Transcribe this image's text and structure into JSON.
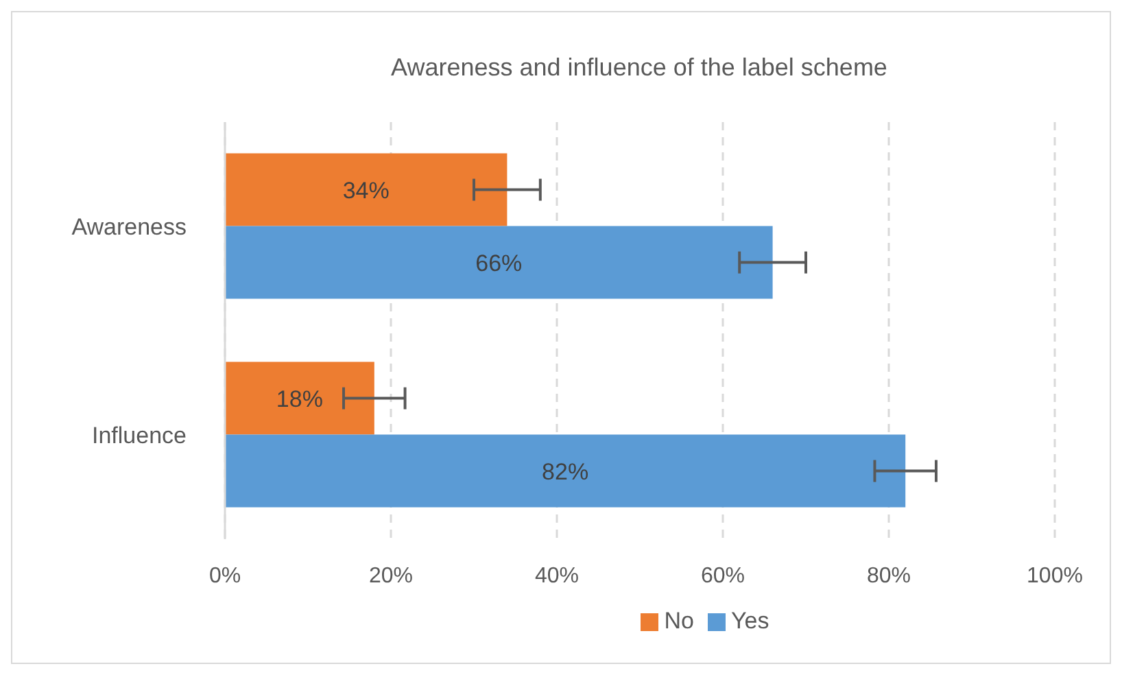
{
  "chart_data": {
    "type": "bar",
    "orientation": "horizontal",
    "title": "Awareness and influence of the label scheme",
    "categories": [
      "Awareness",
      "Influence"
    ],
    "series": [
      {
        "name": "No",
        "color": "#ed7d31",
        "values": [
          34,
          18
        ],
        "errors": [
          4,
          3.7
        ],
        "value_labels": [
          "34%",
          "18%"
        ]
      },
      {
        "name": "Yes",
        "color": "#5b9bd5",
        "values": [
          66,
          82
        ],
        "errors": [
          4,
          3.7
        ],
        "value_labels": [
          "66%",
          "82%"
        ]
      }
    ],
    "xlim": [
      0,
      100
    ],
    "xticks": [
      {
        "value": 0,
        "label": "0%"
      },
      {
        "value": 20,
        "label": "20%"
      },
      {
        "value": 40,
        "label": "40%"
      },
      {
        "value": 60,
        "label": "60%"
      },
      {
        "value": 80,
        "label": "80%"
      },
      {
        "value": 100,
        "label": "100%"
      }
    ],
    "grid": "x",
    "legend": "bottom"
  }
}
